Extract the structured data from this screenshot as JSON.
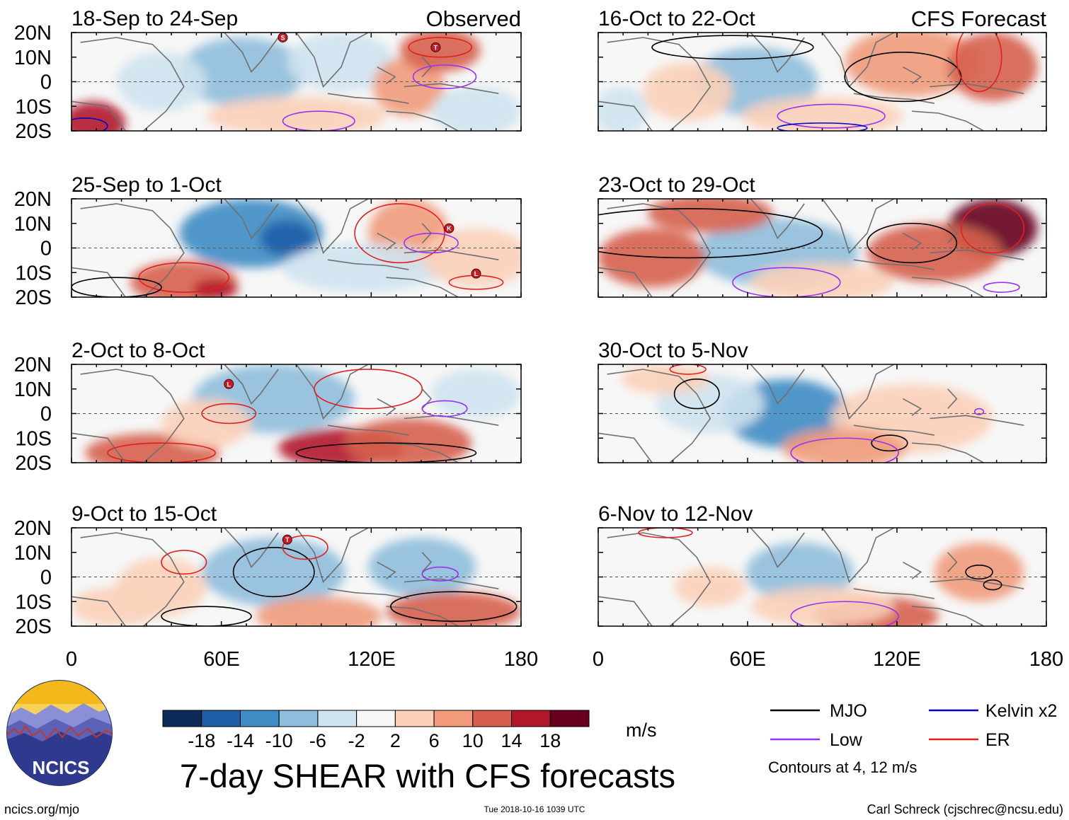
{
  "figure": {
    "title": "7-day SHEAR with CFS forecasts",
    "units": "m/s",
    "url": "ncics.org/mjo",
    "timestamp": "Tue 2018-10-16 1039 UTC",
    "author": "Carl Schreck (cjschrec@ncsu.edu)",
    "logo_text": "NCICS"
  },
  "columns": {
    "left_label": "Observed",
    "right_label": "CFS Forecast"
  },
  "axes": {
    "lat_labels": [
      "20N",
      "10N",
      "0",
      "10S",
      "20S"
    ],
    "lon_labels": [
      "0",
      "60E",
      "120E",
      "180"
    ]
  },
  "panels": {
    "observed": [
      {
        "title": "18-Sep to 24-Sep"
      },
      {
        "title": "25-Sep to 1-Oct"
      },
      {
        "title": "2-Oct to 8-Oct"
      },
      {
        "title": "9-Oct to 15-Oct"
      }
    ],
    "forecast": [
      {
        "title": "16-Oct to 22-Oct"
      },
      {
        "title": "23-Oct to 29-Oct"
      },
      {
        "title": "30-Oct to 5-Nov"
      },
      {
        "title": "6-Nov to 12-Nov"
      }
    ]
  },
  "colorbar": {
    "ticks": [
      "-18",
      "-14",
      "-10",
      "-6",
      "-2",
      "2",
      "6",
      "10",
      "14",
      "18"
    ],
    "colors": [
      "#0d2b59",
      "#1f5fa8",
      "#3f8cc4",
      "#8fbedc",
      "#cfe3f0",
      "#f7f7f7",
      "#fbd0b9",
      "#f19b7c",
      "#d6604d",
      "#b2182b",
      "#67001f"
    ]
  },
  "legend": {
    "items": [
      {
        "label": "MJO",
        "color": "#000000"
      },
      {
        "label": "Kelvin x2",
        "color": "#0000cc"
      },
      {
        "label": "Low",
        "color": "#9933ee"
      },
      {
        "label": "ER",
        "color": "#e02020"
      }
    ],
    "note": "Contours at 4, 12 m/s"
  },
  "storm_markers": {
    "p0": [
      "S",
      "T"
    ],
    "p1": [
      "K",
      "L"
    ],
    "p2": [
      "L"
    ],
    "p3": [
      "T"
    ]
  }
}
